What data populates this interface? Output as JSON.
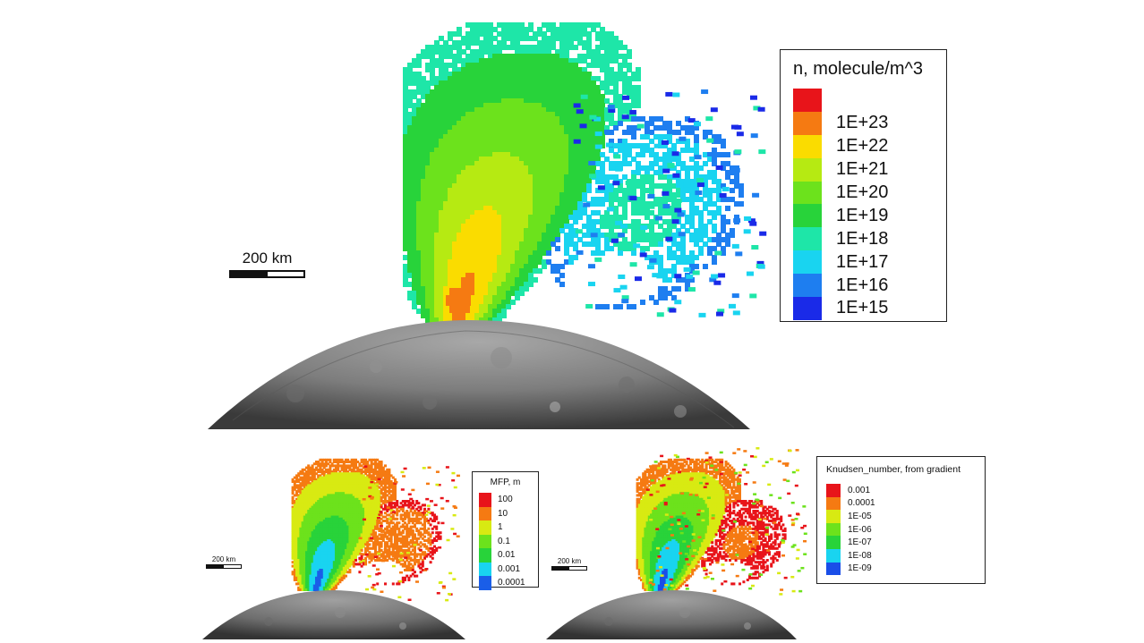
{
  "main": {
    "legend_title": "n, molecule/m^3",
    "legend": [
      {
        "label": "",
        "color": "#e8141a"
      },
      {
        "label": "1E+23",
        "color": "#f57a12"
      },
      {
        "label": "1E+22",
        "color": "#fadc00"
      },
      {
        "label": "1E+21",
        "color": "#b6ea12"
      },
      {
        "label": "1E+20",
        "color": "#6ce21c"
      },
      {
        "label": "1E+19",
        "color": "#28d33a"
      },
      {
        "label": "1E+18",
        "color": "#1ee6a8"
      },
      {
        "label": "1E+17",
        "color": "#19d4f0"
      },
      {
        "label": "1E+16",
        "color": "#1e7ef0"
      },
      {
        "label": "1E+15",
        "color": "#1a2ae8"
      }
    ],
    "scale_label": "200 km"
  },
  "mfp": {
    "legend_title": "MFP, m",
    "legend": [
      {
        "label": "100",
        "color": "#e8141a"
      },
      {
        "label": "10",
        "color": "#f57a12"
      },
      {
        "label": "1",
        "color": "#d8ea12"
      },
      {
        "label": "0.1",
        "color": "#6ce21c"
      },
      {
        "label": "0.01",
        "color": "#28d33a"
      },
      {
        "label": "0.001",
        "color": "#19d4f0"
      },
      {
        "label": "0.0001",
        "color": "#1a5ee8"
      }
    ],
    "scale_label": "200 km"
  },
  "knudsen": {
    "legend_title": "Knudsen_number, from gradient",
    "legend": [
      {
        "label": "0.001",
        "color": "#e8141a"
      },
      {
        "label": "0.0001",
        "color": "#f57a12"
      },
      {
        "label": "1E-05",
        "color": "#d8ea12"
      },
      {
        "label": "1E-06",
        "color": "#6ce21c"
      },
      {
        "label": "1E-07",
        "color": "#28d33a"
      },
      {
        "label": "1E-08",
        "color": "#19d4f0"
      },
      {
        "label": "1E-09",
        "color": "#1a4ee8"
      }
    ],
    "scale_label": "200 km"
  }
}
